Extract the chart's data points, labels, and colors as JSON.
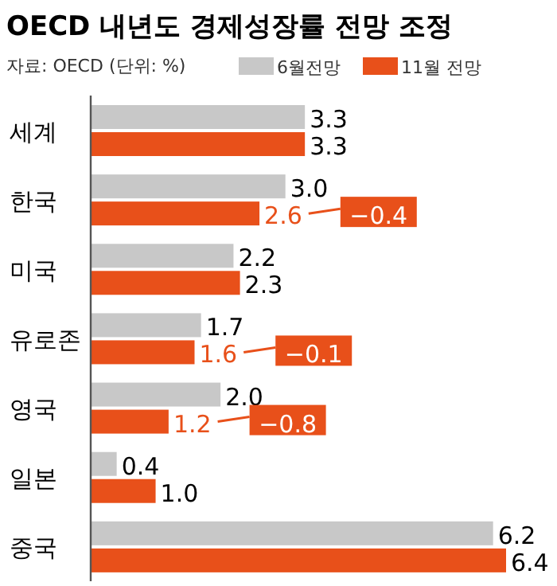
{
  "chart_data": {
    "type": "bar",
    "orientation": "horizontal",
    "title": "OECD 내년도 경제성장률 전망 조정",
    "subtitle": "자료: OECD (단위: %)",
    "categories": [
      "세계",
      "한국",
      "미국",
      "유로존",
      "영국",
      "일본",
      "중국"
    ],
    "series": [
      {
        "name": "6월전망",
        "color": "#c8c8c8",
        "values": [
          3.3,
          3.0,
          2.2,
          1.7,
          2.0,
          0.4,
          6.2
        ],
        "value_labels": [
          "3.3",
          "3.0",
          "2.2",
          "1.7",
          "2.0",
          "0.4",
          "6.2"
        ]
      },
      {
        "name": "11월 전망",
        "color": "#e8501a",
        "values": [
          3.3,
          2.6,
          2.3,
          1.6,
          1.2,
          1.0,
          6.4
        ],
        "value_labels": [
          "3.3",
          "2.6",
          "2.3",
          "1.6",
          "1.2",
          "1.0",
          "6.4"
        ]
      }
    ],
    "legend": "top",
    "annotations": [
      "−0.4",
      "−0.1",
      "−0.8"
    ]
  }
}
